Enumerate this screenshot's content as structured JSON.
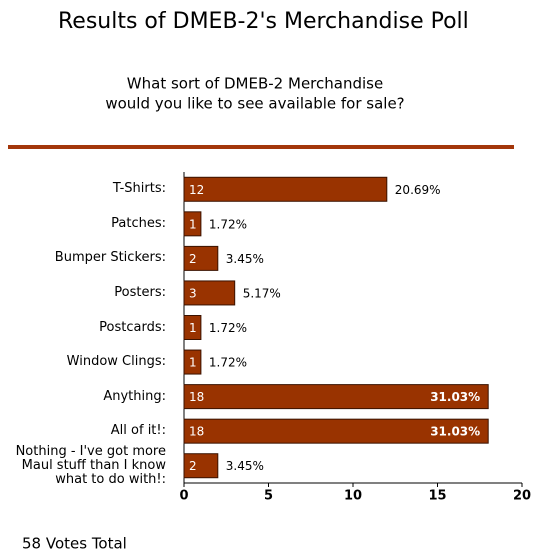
{
  "chart_data": {
    "type": "bar",
    "orientation": "horizontal",
    "title": "Results of DMEB-2's Merchandise Poll",
    "subtitle": [
      "What sort of DMEB-2 Merchandise",
      "would you like to see available for sale?"
    ],
    "categories": [
      "T-Shirts:",
      "Patches:",
      "Bumper Stickers:",
      "Posters:",
      "Postcards:",
      "Window Clings:",
      "Anything:",
      "All of it!:",
      "Nothing - I've got more Maul stuff than I know what to do with!:"
    ],
    "values": [
      12,
      1,
      2,
      3,
      1,
      1,
      18,
      18,
      2
    ],
    "percent_labels": [
      "20.69%",
      "1.72%",
      "3.45%",
      "5.17%",
      "1.72%",
      "1.72%",
      "31.03%",
      "31.03%",
      "3.45%"
    ],
    "color": "#993300",
    "xlim": [
      0,
      20
    ],
    "xticks": [
      0,
      5,
      10,
      15,
      20
    ],
    "footer": "58 Votes Total"
  }
}
